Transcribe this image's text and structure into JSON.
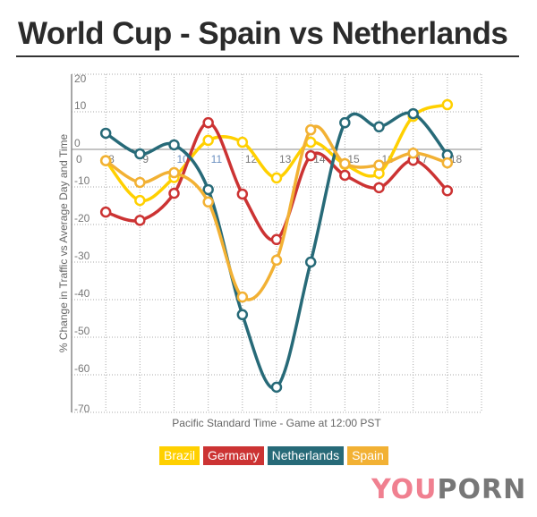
{
  "chart_data": {
    "type": "line",
    "title": "World Cup - Spain vs Netherlands",
    "xlabel": "Pacific Standard Time - Game at 12:00 PST",
    "ylabel": "% Change in Traffic vs Average Day and Time",
    "x": [
      8,
      9,
      10,
      11,
      12,
      13,
      14,
      15,
      16,
      17,
      18
    ],
    "x_tick_labels": [
      "0",
      "8",
      "9",
      "10",
      "11",
      "12",
      "13",
      "14",
      "15",
      "16",
      "17",
      "18"
    ],
    "xlim": [
      7,
      19
    ],
    "ylim": [
      -70,
      20
    ],
    "y_ticks": [
      20,
      10,
      0,
      -10,
      -20,
      -30,
      -40,
      -50,
      -60,
      -70
    ],
    "grid": true,
    "smooth": true,
    "legend_placement": "bottom",
    "series": [
      {
        "name": "Brazil",
        "color": "#FFD000",
        "values": [
          -3,
          -13.6,
          -7.5,
          2.4,
          1.9,
          -7.6,
          1.9,
          -4,
          -6.4,
          8.8,
          11.9
        ]
      },
      {
        "name": "Germany",
        "color": "#CC3333",
        "values": [
          -16.7,
          -18.9,
          -11.7,
          7.1,
          -11.9,
          -24,
          -1.7,
          -6.9,
          -10.2,
          -2.9,
          -11
        ]
      },
      {
        "name": "Netherlands",
        "color": "#276A78",
        "values": [
          4.3,
          -1.2,
          1.2,
          -10.7,
          -44,
          -63.3,
          -30,
          7.1,
          6,
          9.5,
          -1.5
        ]
      },
      {
        "name": "Spain",
        "color": "#F2B134",
        "values": [
          -3,
          -8.8,
          -6.2,
          -14,
          -39.3,
          -29.5,
          5.2,
          -3.8,
          -4.2,
          -1,
          -3.6
        ]
      }
    ]
  },
  "logo": {
    "part1": "YOU",
    "part2": "PORN"
  }
}
